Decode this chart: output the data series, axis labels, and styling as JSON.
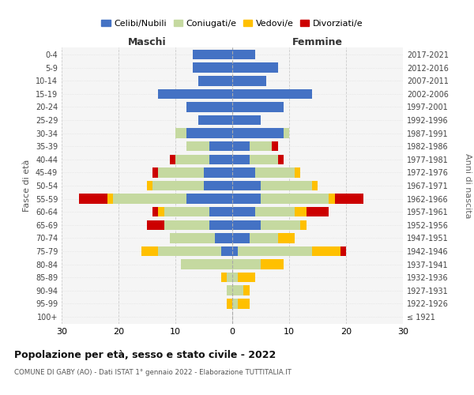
{
  "age_groups": [
    "100+",
    "95-99",
    "90-94",
    "85-89",
    "80-84",
    "75-79",
    "70-74",
    "65-69",
    "60-64",
    "55-59",
    "50-54",
    "45-49",
    "40-44",
    "35-39",
    "30-34",
    "25-29",
    "20-24",
    "15-19",
    "10-14",
    "5-9",
    "0-4"
  ],
  "birth_years": [
    "≤ 1921",
    "1922-1926",
    "1927-1931",
    "1932-1936",
    "1937-1941",
    "1942-1946",
    "1947-1951",
    "1952-1956",
    "1957-1961",
    "1962-1966",
    "1967-1971",
    "1972-1976",
    "1977-1981",
    "1982-1986",
    "1987-1991",
    "1992-1996",
    "1997-2001",
    "2002-2006",
    "2007-2011",
    "2012-2016",
    "2017-2021"
  ],
  "maschi": {
    "celibi": [
      0,
      0,
      0,
      0,
      0,
      2,
      3,
      4,
      4,
      8,
      5,
      5,
      4,
      4,
      8,
      6,
      8,
      13,
      6,
      7,
      7
    ],
    "coniugati": [
      0,
      0,
      1,
      1,
      9,
      11,
      8,
      8,
      8,
      13,
      9,
      8,
      6,
      4,
      2,
      0,
      0,
      0,
      0,
      0,
      0
    ],
    "vedovi": [
      0,
      1,
      0,
      1,
      0,
      3,
      0,
      0,
      1,
      1,
      1,
      0,
      0,
      0,
      0,
      0,
      0,
      0,
      0,
      0,
      0
    ],
    "divorziati": [
      0,
      0,
      0,
      0,
      0,
      0,
      0,
      3,
      1,
      5,
      0,
      1,
      1,
      0,
      0,
      0,
      0,
      0,
      0,
      0,
      0
    ]
  },
  "femmine": {
    "nubili": [
      0,
      0,
      0,
      0,
      0,
      1,
      3,
      5,
      4,
      5,
      5,
      4,
      3,
      3,
      9,
      5,
      9,
      14,
      6,
      8,
      4
    ],
    "coniugate": [
      0,
      1,
      2,
      1,
      5,
      13,
      5,
      7,
      7,
      12,
      9,
      7,
      5,
      4,
      1,
      0,
      0,
      0,
      0,
      0,
      0
    ],
    "vedove": [
      0,
      2,
      1,
      3,
      4,
      5,
      3,
      1,
      2,
      1,
      1,
      1,
      0,
      0,
      0,
      0,
      0,
      0,
      0,
      0,
      0
    ],
    "divorziate": [
      0,
      0,
      0,
      0,
      0,
      1,
      0,
      0,
      4,
      5,
      0,
      0,
      1,
      1,
      0,
      0,
      0,
      0,
      0,
      0,
      0
    ]
  },
  "colors": {
    "celibi": "#4472c4",
    "coniugati": "#c5d9a0",
    "vedovi": "#ffc000",
    "divorziati": "#cc0000"
  },
  "xlim": 30,
  "title": "Popolazione per età, sesso e stato civile - 2022",
  "subtitle": "COMUNE DI GABY (AO) - Dati ISTAT 1° gennaio 2022 - Elaborazione TUTTITALIA.IT",
  "ylabel_left": "Fasce di età",
  "ylabel_right": "Anni di nascita",
  "xlabel_maschi": "Maschi",
  "xlabel_femmine": "Femmine",
  "legend_labels": [
    "Celibi/Nubili",
    "Coniugati/e",
    "Vedovi/e",
    "Divorziati/e"
  ],
  "background_color": "#ffffff",
  "plot_bg": "#f5f5f5",
  "grid_color": "#cccccc"
}
